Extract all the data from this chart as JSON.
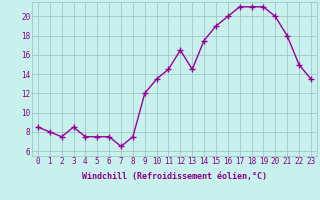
{
  "x": [
    0,
    1,
    2,
    3,
    4,
    5,
    6,
    7,
    8,
    9,
    10,
    11,
    12,
    13,
    14,
    15,
    16,
    17,
    18,
    19,
    20,
    21,
    22,
    23
  ],
  "y": [
    8.5,
    8.0,
    7.5,
    8.5,
    7.5,
    7.5,
    7.5,
    6.5,
    7.5,
    12.0,
    13.5,
    14.5,
    16.5,
    14.5,
    17.5,
    19.0,
    20.0,
    21.0,
    21.0,
    21.0,
    20.0,
    18.0,
    15.0,
    13.5
  ],
  "line_color": "#990099",
  "marker_color": "#990099",
  "bg_color": "#c8f0ec",
  "grid_color": "#a0c8c8",
  "xlabel": "Windchill (Refroidissement éolien,°C)",
  "ylabel": "",
  "xlim": [
    -0.5,
    23.5
  ],
  "ylim": [
    5.5,
    21.5
  ],
  "yticks": [
    6,
    8,
    10,
    12,
    14,
    16,
    18,
    20
  ],
  "xtick_labels": [
    "0",
    "1",
    "2",
    "3",
    "4",
    "5",
    "6",
    "7",
    "8",
    "9",
    "10",
    "11",
    "12",
    "13",
    "14",
    "15",
    "16",
    "17",
    "18",
    "19",
    "20",
    "21",
    "22",
    "23"
  ],
  "font_color": "#880088",
  "tick_color": "#880088",
  "label_fontsize": 6.0,
  "tick_fontsize": 5.5,
  "linewidth": 1.0,
  "markersize": 2.0
}
